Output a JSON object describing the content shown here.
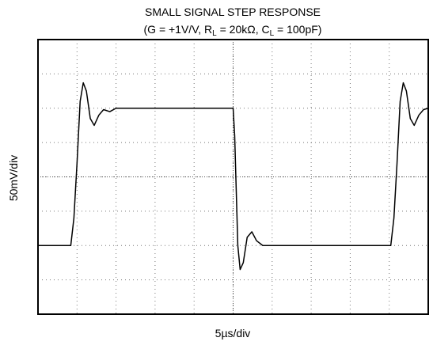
{
  "chart_data": {
    "type": "line",
    "title": "SMALL SIGNAL STEP RESPONSE",
    "subtitle_parts": [
      "(G = +1V/V, R",
      "L",
      " = 20kΩ, C",
      "L",
      " = 100pF)"
    ],
    "x_label": "5µs/div",
    "y_label": "50mV/div",
    "xlim": [
      0,
      50
    ],
    "ylim": [
      -200,
      200
    ],
    "grid": true,
    "series": [
      {
        "color": "#000000",
        "x": [
          0,
          4.2,
          4.6,
          5.0,
          5.4,
          5.8,
          6.2,
          6.7,
          7.2,
          7.8,
          8.4,
          9.2,
          10,
          25,
          25.2,
          25.4,
          25.6,
          25.9,
          26.3,
          26.8,
          27.4,
          28,
          28.8,
          30,
          45.2,
          45.6,
          46.0,
          46.4,
          46.8,
          47.2,
          47.7,
          48.2,
          48.8,
          49.4,
          50
        ],
        "values": [
          -100,
          -100,
          -60,
          20,
          110,
          137,
          125,
          85,
          75,
          90,
          98,
          95,
          100,
          100,
          60,
          -20,
          -100,
          -135,
          -125,
          -88,
          -80,
          -93,
          -100,
          -100,
          -100,
          -60,
          20,
          110,
          137,
          125,
          85,
          75,
          90,
          98,
          100
        ]
      }
    ]
  }
}
